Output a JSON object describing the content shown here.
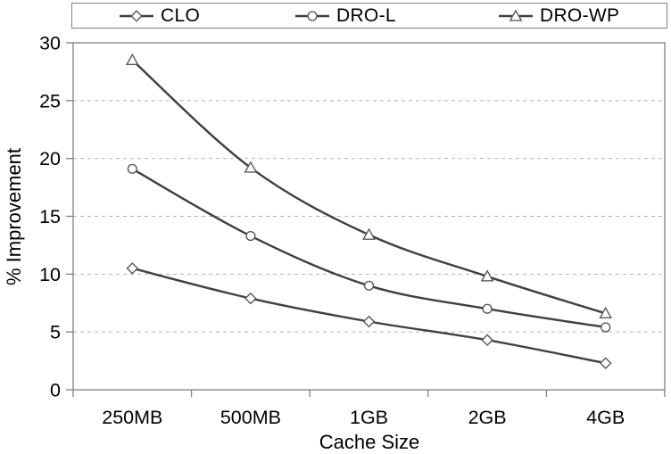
{
  "colors": {
    "line": "#404040",
    "marker_stroke": "#595959",
    "marker_fill": "#ffffff",
    "grid": "#b3b3b3",
    "axis": "#808080",
    "text": "#000000",
    "background": "#ffffff"
  },
  "chart_data": {
    "type": "line",
    "title": "",
    "xlabel": "Cache Size",
    "ylabel": "% Improvement",
    "categories": [
      "250MB",
      "500MB",
      "1GB",
      "2GB",
      "4GB"
    ],
    "series": [
      {
        "name": "CLO",
        "marker": "diamond",
        "values": [
          10.5,
          7.9,
          5.9,
          4.3,
          2.3
        ]
      },
      {
        "name": "DRO-L",
        "marker": "circle",
        "values": [
          19.1,
          13.3,
          9.0,
          7.0,
          5.4
        ]
      },
      {
        "name": "DRO-WP",
        "marker": "triangle",
        "values": [
          28.5,
          19.2,
          13.4,
          9.8,
          6.6
        ]
      }
    ],
    "ylim": [
      0,
      30
    ],
    "ytick_step": 5,
    "yticks": [
      0,
      5,
      10,
      15,
      20,
      25,
      30
    ],
    "grid": "horizontal-dashed",
    "legend_position": "top",
    "smoothed_lines": true
  }
}
